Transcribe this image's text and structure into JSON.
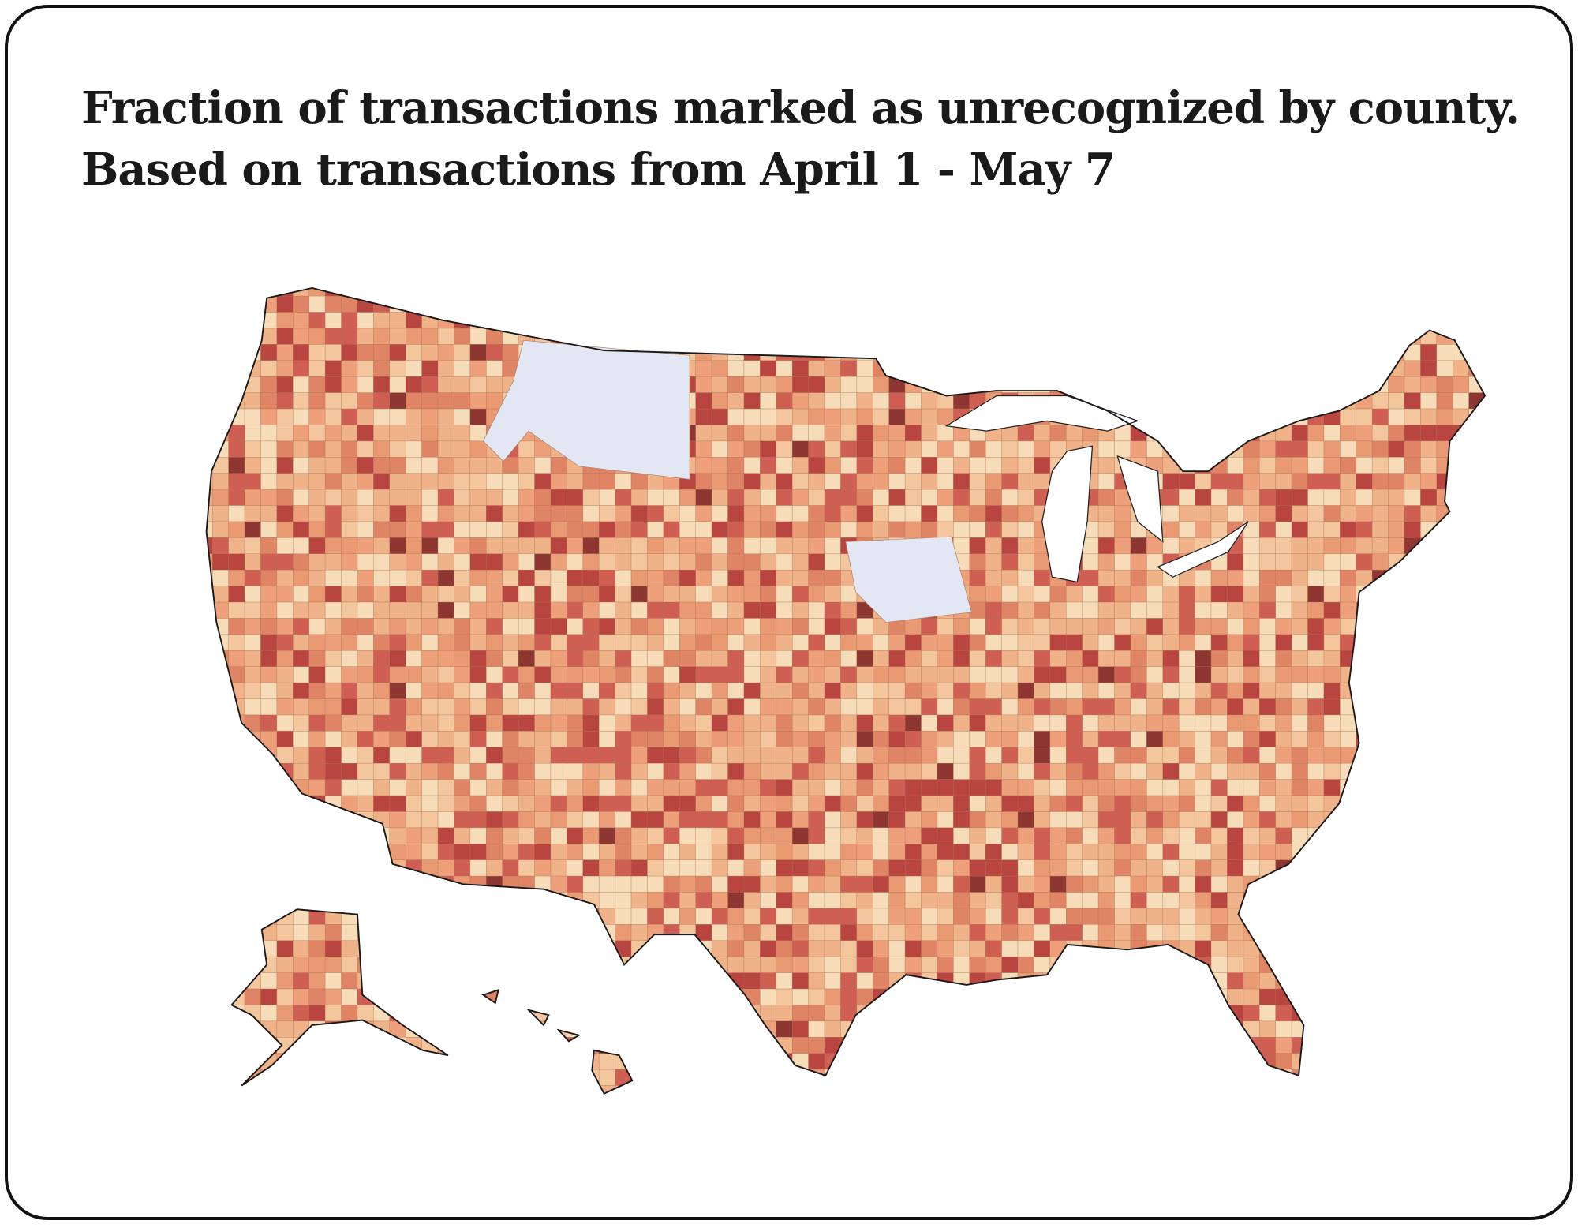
{
  "header": {
    "title": [
      "Fraction of transactions marked as unrecognized by county.",
      "Based on transactions from April 1 - May 7"
    ]
  }
}
